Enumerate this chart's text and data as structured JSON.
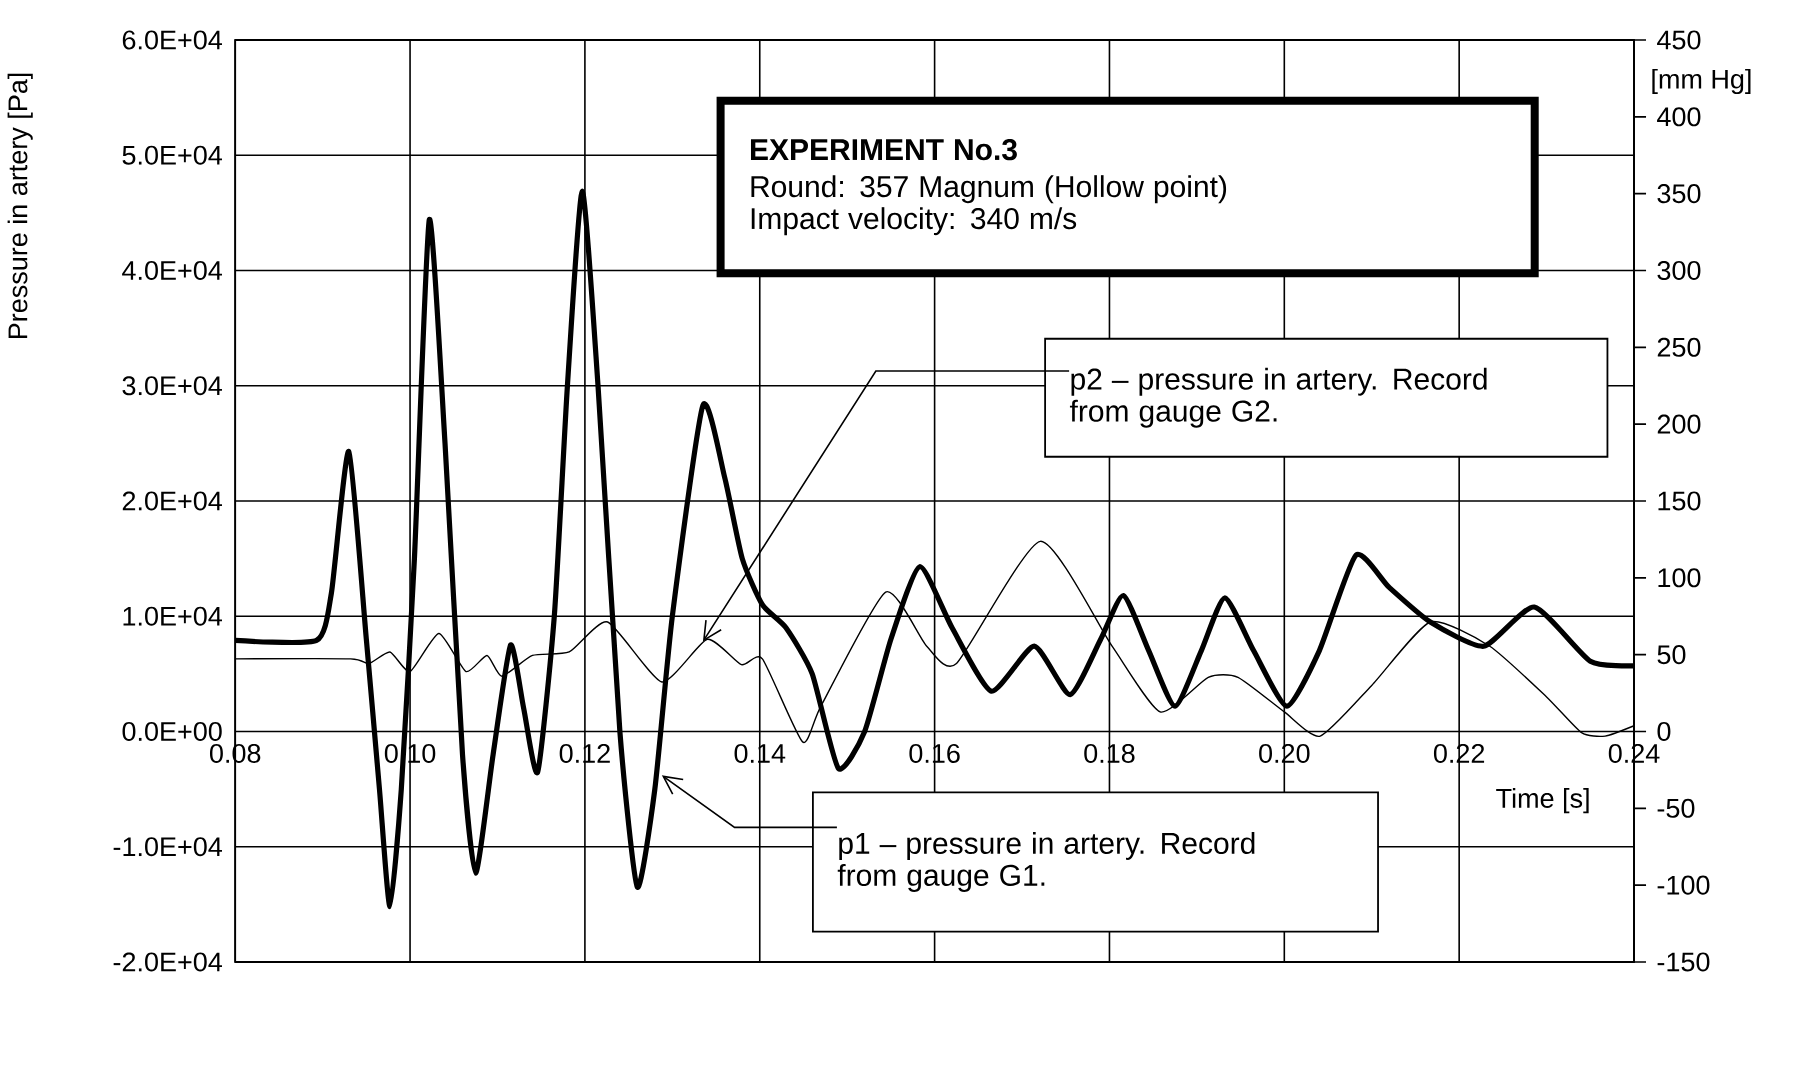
{
  "chart_data": {
    "type": "line",
    "xlabel": "Time [s]",
    "ylabel": "Pressure in artery [Pa]",
    "y2label": "[mm Hg]",
    "xlim": [
      0.08,
      0.24
    ],
    "xticks": [
      {
        "value": 0.08,
        "label": "0.08"
      },
      {
        "value": 0.1,
        "label": "0.10"
      },
      {
        "value": 0.12,
        "label": "0.12"
      },
      {
        "value": 0.14,
        "label": "0.14"
      },
      {
        "value": 0.16,
        "label": "0.16"
      },
      {
        "value": 0.18,
        "label": "0.18"
      },
      {
        "value": 0.2,
        "label": "0.20"
      },
      {
        "value": 0.22,
        "label": "0.22"
      },
      {
        "value": 0.24,
        "label": "0.24"
      }
    ],
    "ylim": [
      -20000,
      60000
    ],
    "yticks": [
      {
        "value": -20000,
        "label": "-2.0E+04"
      },
      {
        "value": -10000,
        "label": "-1.0E+04"
      },
      {
        "value": 0,
        "label": "0.0E+00"
      },
      {
        "value": 10000,
        "label": "1.0E+04"
      },
      {
        "value": 20000,
        "label": "2.0E+04"
      },
      {
        "value": 30000,
        "label": "3.0E+04"
      },
      {
        "value": 40000,
        "label": "4.0E+04"
      },
      {
        "value": 50000,
        "label": "5.0E+04"
      },
      {
        "value": 60000,
        "label": "6.0E+04"
      }
    ],
    "y2lim": [
      -150,
      450
    ],
    "y2ticks": [
      -150,
      -100,
      -50,
      0,
      50,
      100,
      150,
      200,
      250,
      300,
      350,
      400,
      450
    ],
    "grid": true,
    "marker": "none",
    "line_style": "solid",
    "series": [
      {
        "color": "#000000",
        "x": [
          0.08,
          0.0893,
          0.091,
          0.093,
          0.095,
          0.0965,
          0.0977,
          0.099,
          0.1005,
          0.1022,
          0.104,
          0.106,
          0.1075,
          0.1095,
          0.1115,
          0.113,
          0.1146,
          0.1165,
          0.118,
          0.1197,
          0.1215,
          0.124,
          0.126,
          0.128,
          0.13,
          0.1335,
          0.136,
          0.138,
          0.1403,
          0.143,
          0.146,
          0.149,
          0.152,
          0.155,
          0.1583,
          0.162,
          0.1665,
          0.1714,
          0.1755,
          0.179,
          0.1816,
          0.1845,
          0.1875,
          0.1905,
          0.1932,
          0.1965,
          0.2003,
          0.204,
          0.2082,
          0.212,
          0.2167,
          0.2228,
          0.2286,
          0.235,
          0.24
        ],
        "values": [
          7900,
          7900,
          12000,
          24300,
          8000,
          -5000,
          -15200,
          -5000,
          15000,
          44400,
          25000,
          -2000,
          -12300,
          -2000,
          7500,
          2000,
          -3500,
          10000,
          30000,
          46900,
          30000,
          0,
          -13500,
          -5000,
          10000,
          28300,
          22000,
          15000,
          11000,
          9000,
          5000,
          -3200,
          0,
          8000,
          14300,
          9000,
          3500,
          7400,
          3200,
          8000,
          11800,
          7000,
          2200,
          7000,
          11600,
          7000,
          2200,
          7000,
          15300,
          12500,
          9500,
          7400,
          10800,
          6100,
          5700
        ]
      },
      {
        "color": "#000000",
        "x": [
          0.08,
          0.0932,
          0.0953,
          0.0977,
          0.1,
          0.1033,
          0.1064,
          0.1088,
          0.1105,
          0.114,
          0.1182,
          0.1226,
          0.1288,
          0.134,
          0.1379,
          0.1403,
          0.1449,
          0.147,
          0.1544,
          0.1591,
          0.1625,
          0.1721,
          0.1803,
          0.1858,
          0.1913,
          0.1947,
          0.2,
          0.2041,
          0.21,
          0.2167,
          0.2235,
          0.23,
          0.234,
          0.2367,
          0.24
        ],
        "values": [
          6300,
          6300,
          5900,
          6900,
          5200,
          8500,
          5200,
          6600,
          4800,
          6600,
          6900,
          9500,
          4300,
          8000,
          5800,
          6300,
          -900,
          2200,
          12100,
          7400,
          5900,
          16500,
          7400,
          1700,
          4700,
          4700,
          1700,
          -400,
          4000,
          9500,
          7400,
          3000,
          -100,
          -400,
          500
        ]
      }
    ],
    "annotations": [
      "EXPERIMENT No.3",
      "Round: 357 Magnum (Hollow point)",
      "Impact velocity: 340 m/s",
      {
        "text": "p2 – pressure in artery. Record from gauge G2.",
        "x": 0.1335,
        "y": 7800
      },
      {
        "text": "p1 – pressure in artery. Record from gauge G1.",
        "x": 0.1288,
        "y": -3800
      }
    ]
  }
}
